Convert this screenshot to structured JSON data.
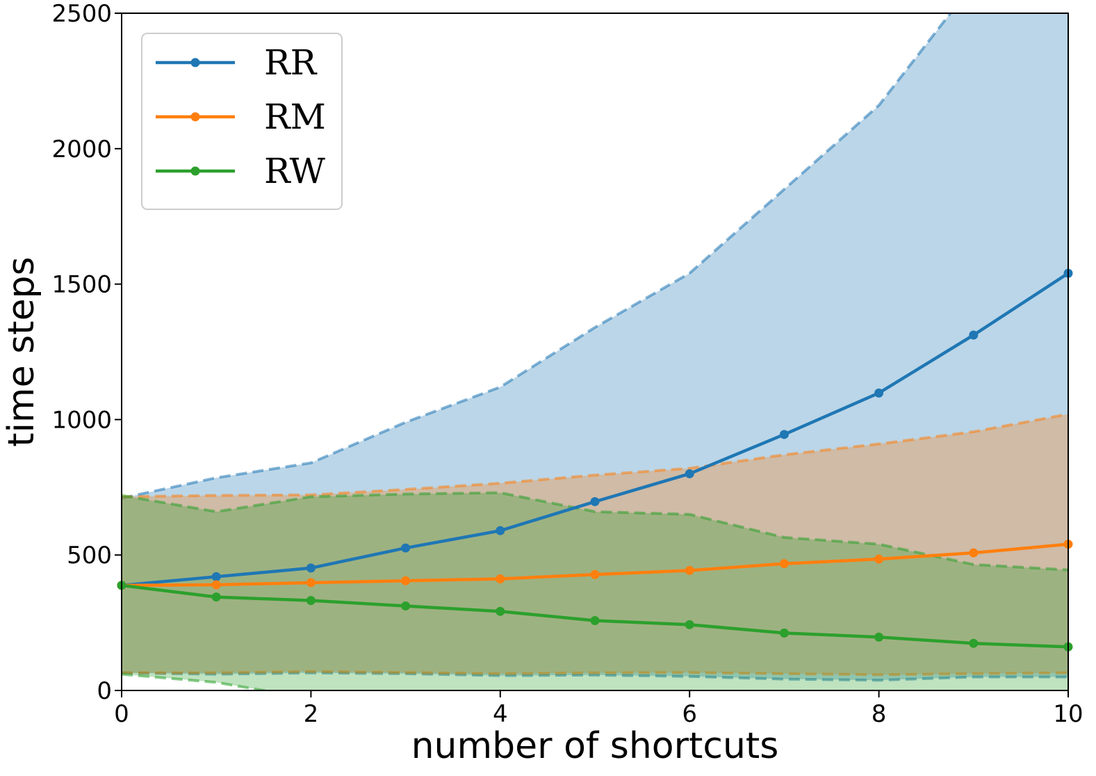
{
  "chart_data": {
    "type": "line",
    "title": "",
    "xlabel": "number of shortcuts",
    "ylabel": "time steps",
    "xlim": [
      0,
      10
    ],
    "ylim": [
      0,
      2500
    ],
    "xticks": [
      0,
      2,
      4,
      6,
      8,
      10
    ],
    "yticks": [
      0,
      500,
      1000,
      1500,
      2000,
      2500
    ],
    "grid": false,
    "legend_position": "top-left",
    "x": [
      0,
      1,
      2,
      3,
      4,
      5,
      6,
      7,
      8,
      9,
      10
    ],
    "series": [
      {
        "name": "RR",
        "color": "#1f77b4",
        "band_color": "#a9c8e2",
        "values": [
          388,
          420,
          452,
          526,
          590,
          697,
          800,
          945,
          1098,
          1312,
          1540
        ],
        "upper": [
          710,
          785,
          840,
          990,
          1120,
          1340,
          1540,
          1850,
          2160,
          2610,
          3000
        ],
        "lower": [
          65,
          60,
          65,
          62,
          55,
          57,
          52,
          42,
          38,
          50,
          50
        ]
      },
      {
        "name": "RM",
        "color": "#ff7f0e",
        "band_color": "#f3c49e",
        "values": [
          388,
          390,
          398,
          405,
          412,
          428,
          443,
          468,
          485,
          508,
          540
        ],
        "upper": [
          715,
          720,
          722,
          742,
          765,
          795,
          820,
          870,
          910,
          955,
          1020
        ],
        "lower": [
          65,
          65,
          70,
          66,
          62,
          65,
          66,
          62,
          58,
          62,
          65
        ]
      },
      {
        "name": "RW",
        "color": "#2ca02c",
        "band_color": "#b5dfb2",
        "values": [
          388,
          345,
          332,
          312,
          292,
          258,
          243,
          212,
          197,
          174,
          161
        ],
        "upper": [
          720,
          660,
          715,
          725,
          730,
          660,
          650,
          565,
          540,
          465,
          445
        ],
        "lower": [
          60,
          30,
          -30,
          -80,
          -90,
          -100,
          -110,
          -130,
          -150,
          -160,
          -170
        ]
      }
    ]
  }
}
